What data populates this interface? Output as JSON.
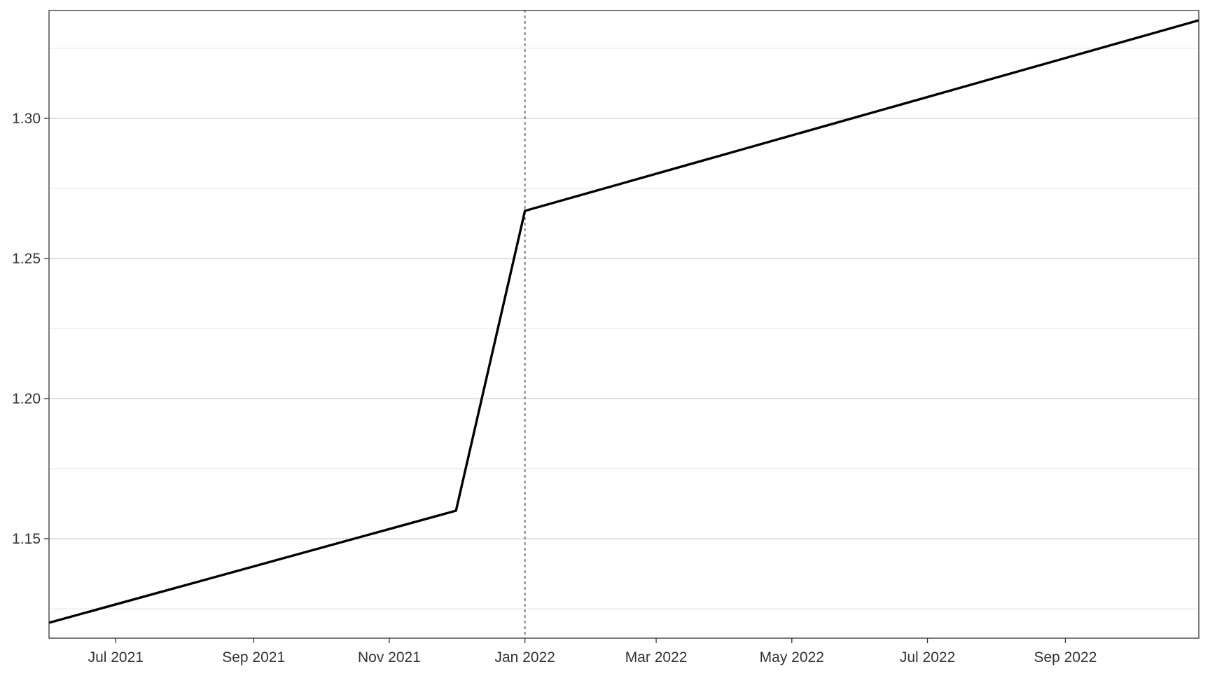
{
  "chart_data": {
    "type": "line",
    "title": "",
    "xlabel": "",
    "ylabel": "",
    "x_type": "date",
    "xlim": [
      "2021-06-01",
      "2022-10-31"
    ],
    "ylim": [
      1.1145,
      1.3385
    ],
    "x_ticks": [
      {
        "date": "2021-07-01",
        "label": "Jul 2021"
      },
      {
        "date": "2021-09-01",
        "label": "Sep 2021"
      },
      {
        "date": "2021-11-01",
        "label": "Nov 2021"
      },
      {
        "date": "2022-01-01",
        "label": "Jan 2022"
      },
      {
        "date": "2022-03-01",
        "label": "Mar 2022"
      },
      {
        "date": "2022-05-01",
        "label": "May 2022"
      },
      {
        "date": "2022-07-01",
        "label": "Jul 2022"
      },
      {
        "date": "2022-09-01",
        "label": "Sep 2022"
      }
    ],
    "y_ticks": [
      {
        "value": 1.15,
        "label": "1.15"
      },
      {
        "value": 1.2,
        "label": "1.20"
      },
      {
        "value": 1.25,
        "label": "1.25"
      },
      {
        "value": 1.3,
        "label": "1.30"
      }
    ],
    "y_minor_gridlines": [
      1.125,
      1.175,
      1.225,
      1.275,
      1.325
    ],
    "grid": true,
    "legend": "none",
    "series": [
      {
        "color": "#000000",
        "points": [
          {
            "x": "2021-06-01",
            "y": 1.12
          },
          {
            "x": "2021-12-01",
            "y": 1.16
          },
          {
            "x": "2022-01-01",
            "y": 1.267
          },
          {
            "x": "2022-10-31",
            "y": 1.335
          }
        ]
      }
    ],
    "reference_lines": [
      {
        "orientation": "vertical",
        "x": "2022-01-01",
        "style": "dotted",
        "color": "#808080"
      }
    ]
  }
}
